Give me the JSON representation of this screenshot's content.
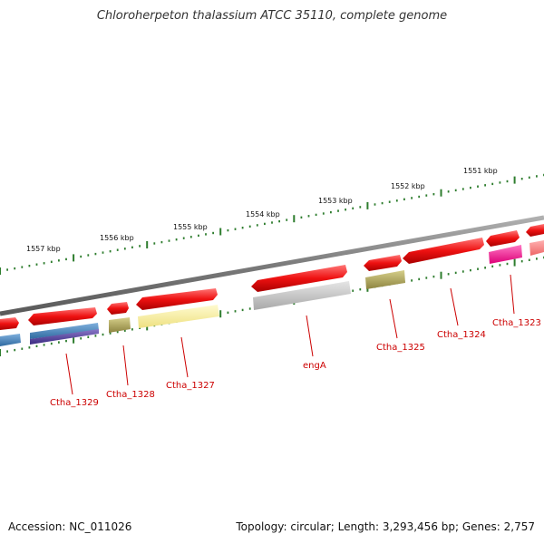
{
  "title": "Chloroherpeton thalassium ATCC 35110, complete genome",
  "accession_text": "Accession: NC_011026",
  "summary_text": "Topology: circular; Length: 3,293,456 bp; Genes: 2,757",
  "colors": {
    "backbone": "#8a8a8a",
    "tick": "#2e7d2e",
    "label": "#cc0000",
    "cds": "#ee1111",
    "cds_light": "#ff5555"
  },
  "scale_labels": [
    {
      "kbp": 1551,
      "text": "1551 kbp"
    },
    {
      "kbp": 1552,
      "text": "1552 kbp"
    },
    {
      "kbp": 1553,
      "text": "1553 kbp"
    },
    {
      "kbp": 1554,
      "text": "1554 kbp"
    },
    {
      "kbp": 1555,
      "text": "1555 kbp"
    },
    {
      "kbp": 1556,
      "text": "1556 kbp"
    },
    {
      "kbp": 1557,
      "text": "1557 kbp"
    }
  ],
  "gene_labels": [
    {
      "text": "Ctha_1329"
    },
    {
      "text": "Ctha_1328"
    },
    {
      "text": "Ctha_1327"
    },
    {
      "text": "engA"
    },
    {
      "text": "Ctha_1325"
    },
    {
      "text": "Ctha_1324"
    },
    {
      "text": "Ctha_1323"
    }
  ]
}
